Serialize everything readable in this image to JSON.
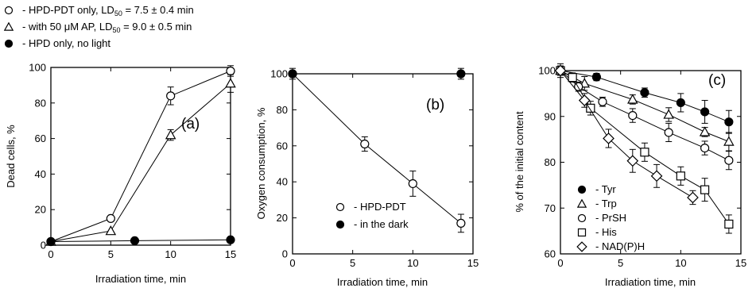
{
  "chart_data": [
    {
      "type": "line",
      "panel_label": "(a)",
      "xlabel": "Irradiation time, min",
      "ylabel": "Dead cells, %",
      "xlim": [
        0,
        15
      ],
      "ylim": [
        0,
        100
      ],
      "xticks": [
        0,
        5,
        10,
        15
      ],
      "yticks": [
        0,
        20,
        40,
        60,
        80,
        100
      ],
      "legend": [
        {
          "marker": "open-circle",
          "pre": "- HPD-PDT only, LD",
          "sub": "50",
          "post": " = 7.5 ± 0.4 min"
        },
        {
          "marker": "open-triangle",
          "pre": "- with 50 μM AP, LD",
          "sub": "50",
          "post": " = 9.0 ± 0.5 min"
        },
        {
          "marker": "filled-circle",
          "pre": "- HPD only, no light",
          "sub": "",
          "post": ""
        }
      ],
      "series": [
        {
          "marker": "open-circle",
          "points": [
            [
              0,
              2
            ],
            [
              5,
              15
            ],
            [
              10,
              84
            ],
            [
              15,
              98
            ]
          ],
          "err": [
            0,
            0,
            5,
            3
          ]
        },
        {
          "marker": "open-triangle",
          "points": [
            [
              0,
              2
            ],
            [
              5,
              8
            ],
            [
              10,
              62
            ],
            [
              15,
              91
            ]
          ],
          "err": [
            0,
            0,
            3,
            5
          ]
        },
        {
          "marker": "filled-circle",
          "points": [
            [
              0,
              2
            ],
            [
              7,
              2.5
            ],
            [
              15,
              3
            ]
          ],
          "err": [
            0,
            0,
            0
          ]
        }
      ]
    },
    {
      "type": "line",
      "panel_label": "(b)",
      "xlabel": "Irradiation time, min",
      "ylabel": "Oxygen consumption, %",
      "xlim": [
        0,
        15
      ],
      "ylim": [
        0,
        100
      ],
      "xticks": [
        0,
        5,
        10,
        15
      ],
      "yticks": [
        0,
        20,
        40,
        60,
        80,
        100
      ],
      "legend": [
        {
          "marker": "open-circle",
          "label": "- HPD-PDT"
        },
        {
          "marker": "filled-circle",
          "label": "- in the dark"
        }
      ],
      "series": [
        {
          "marker": "open-circle",
          "points": [
            [
              0,
              100
            ],
            [
              6,
              61
            ],
            [
              10,
              39
            ],
            [
              14,
              17
            ]
          ],
          "err": [
            0,
            4,
            7,
            5
          ]
        },
        {
          "marker": "filled-circle",
          "points": [
            [
              0,
              100
            ],
            [
              14,
              100
            ]
          ],
          "err": [
            3,
            3
          ]
        }
      ]
    },
    {
      "type": "line",
      "panel_label": "(c)",
      "xlabel": "Irradiation time, min",
      "ylabel": "% of the initial content",
      "xlim": [
        0,
        15
      ],
      "ylim": [
        60,
        100
      ],
      "xticks": [
        0,
        5,
        10,
        15
      ],
      "yticks": [
        60,
        70,
        80,
        90,
        100
      ],
      "legend": [
        {
          "marker": "filled-circle",
          "label": "- Tyr"
        },
        {
          "marker": "open-triangle",
          "label": "- Trp"
        },
        {
          "marker": "open-circle",
          "label": "- PrSH"
        },
        {
          "marker": "open-square",
          "label": "- His"
        },
        {
          "marker": "open-diamond",
          "label": "- NAD(P)H"
        }
      ],
      "series": [
        {
          "name": "Tyr",
          "marker": "filled-circle",
          "points": [
            [
              0,
              100
            ],
            [
              3,
              98.6
            ],
            [
              7,
              95.2
            ],
            [
              10,
              93
            ],
            [
              12,
              91
            ],
            [
              14,
              88.8
            ]
          ],
          "err": [
            1.5,
            0.8,
            1,
            2,
            2.5,
            2.5
          ]
        },
        {
          "name": "Trp",
          "marker": "open-triangle",
          "points": [
            [
              0,
              100
            ],
            [
              2,
              97.2
            ],
            [
              6,
              93.7
            ],
            [
              9,
              90.4
            ],
            [
              12,
              86.6
            ],
            [
              14,
              84.5
            ]
          ],
          "err": [
            1,
            1.5,
            1,
            1.5,
            1,
            2
          ]
        },
        {
          "name": "PrSH",
          "marker": "open-circle",
          "points": [
            [
              0,
              100
            ],
            [
              1.5,
              96.5
            ],
            [
              3.5,
              93.2
            ],
            [
              6,
              90.2
            ],
            [
              9,
              86.5
            ],
            [
              12,
              83.1
            ],
            [
              14,
              80.4
            ]
          ],
          "err": [
            1,
            1,
            1,
            1.5,
            2,
            1.5,
            2
          ]
        },
        {
          "name": "His",
          "marker": "open-square",
          "points": [
            [
              0,
              100
            ],
            [
              1,
              98.5
            ],
            [
              2.5,
              91.8
            ],
            [
              7,
              82.2
            ],
            [
              10,
              77
            ],
            [
              12,
              74
            ],
            [
              14,
              66.5
            ]
          ],
          "err": [
            1,
            1,
            1.5,
            2,
            2,
            2.5,
            2
          ]
        },
        {
          "name": "NAD(P)H",
          "marker": "open-diamond",
          "points": [
            [
              0,
              100
            ],
            [
              2,
              93.5
            ],
            [
              4,
              85.2
            ],
            [
              6,
              80.3
            ],
            [
              8,
              77
            ],
            [
              11,
              72.3
            ]
          ],
          "err": [
            0,
            1.5,
            2,
            2.5,
            2.5,
            1.5
          ]
        }
      ]
    }
  ]
}
